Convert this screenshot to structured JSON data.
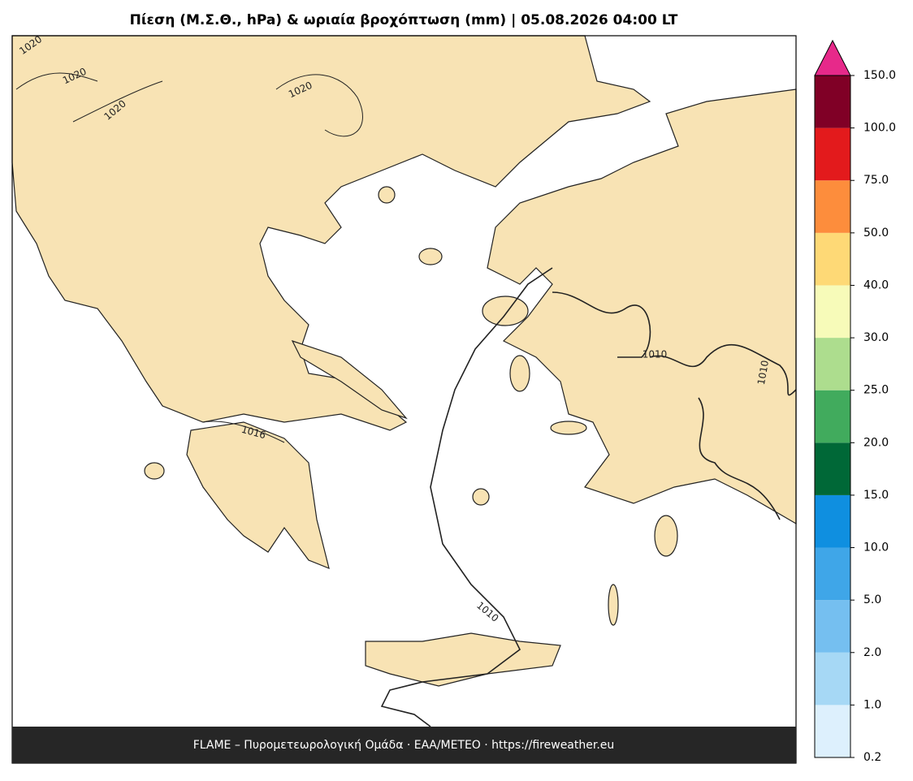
{
  "title": "Πίεση (Μ.Σ.Θ., hPa) & ωριαία βροχόπτωση (mm)  |  05.08.2026 04:00 LT",
  "footer": "FLAME – Πυρομετεωρολογική Ομάδα · ΕΑΑ/METEO · https://fireweather.eu",
  "colorbar": {
    "ticks": [
      "0.2",
      "1.0",
      "2.0",
      "5.0",
      "10.0",
      "15.0",
      "20.0",
      "25.0",
      "30.0",
      "40.0",
      "50.0",
      "75.0",
      "100.0",
      "150.0"
    ],
    "colors": [
      "#ddf0fd",
      "#a6d8f5",
      "#75bff0",
      "#3fa6e8",
      "#0f8fe0",
      "#006837",
      "#41ab5d",
      "#addd8e",
      "#f7fbb9",
      "#fed976",
      "#fd8d3c",
      "#e31a1c",
      "#800026"
    ],
    "extend_color": "#e7298a"
  },
  "contour_labels": [
    "1020",
    "1020",
    "1020",
    "1020",
    "1016",
    "1010",
    "1010",
    "1010"
  ]
}
